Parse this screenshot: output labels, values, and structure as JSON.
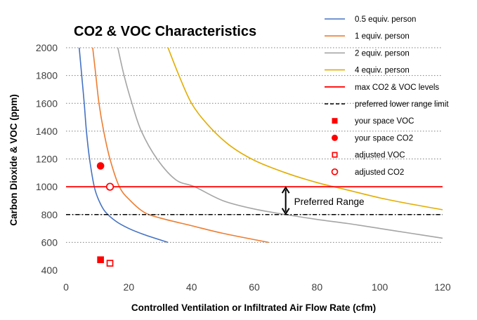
{
  "chart_data": {
    "type": "line",
    "title": "CO2 & VOC Characteristics",
    "xlabel": "Controlled Ventilation or Infiltrated Air Flow Rate (cfm)",
    "ylabel": "Carbon Dioxide & VOC (ppm)",
    "xlim": [
      0,
      120
    ],
    "ylim": [
      400,
      2000
    ],
    "x_ticks": [
      "0",
      "20",
      "40",
      "60",
      "80",
      "100",
      "120"
    ],
    "y_ticks": [
      "400",
      "600",
      "800",
      "1000",
      "1200",
      "1400",
      "1600",
      "1800",
      "2000"
    ],
    "grid": "horizontal dotted",
    "legend_position": "right",
    "series": [
      {
        "name": "0.5 equiv. person",
        "kind": "line",
        "color": "#4472c4",
        "points": [
          [
            4.2,
            2000
          ],
          [
            5,
            1800
          ],
          [
            5.8,
            1600
          ],
          [
            6.5,
            1400
          ],
          [
            7.5,
            1200
          ],
          [
            9,
            1000
          ],
          [
            10.5,
            900
          ],
          [
            12.5,
            820
          ],
          [
            16,
            750
          ],
          [
            20,
            700
          ],
          [
            25,
            655
          ],
          [
            32.5,
            600
          ]
        ]
      },
      {
        "name": "1 equiv.  person",
        "kind": "line",
        "color": "#ed7d31",
        "points": [
          [
            8.5,
            2000
          ],
          [
            9.5,
            1800
          ],
          [
            10.5,
            1600
          ],
          [
            12,
            1400
          ],
          [
            14,
            1200
          ],
          [
            17,
            1000
          ],
          [
            20.5,
            900
          ],
          [
            25,
            815
          ],
          [
            30,
            775
          ],
          [
            40,
            720
          ],
          [
            50,
            665
          ],
          [
            64.5,
            600
          ]
        ]
      },
      {
        "name": "2 equiv. person",
        "kind": "line",
        "color": "#a5a5a5",
        "points": [
          [
            16.5,
            2000
          ],
          [
            18.5,
            1800
          ],
          [
            21,
            1600
          ],
          [
            24,
            1400
          ],
          [
            29,
            1200
          ],
          [
            35,
            1050
          ],
          [
            41,
            1000
          ],
          [
            50,
            900
          ],
          [
            60,
            840
          ],
          [
            70,
            800
          ],
          [
            80,
            765
          ],
          [
            90,
            735
          ],
          [
            100,
            700
          ],
          [
            110,
            665
          ],
          [
            120,
            630
          ]
        ]
      },
      {
        "name": "4 equiv. person",
        "kind": "line",
        "color": "#e2ad00",
        "points": [
          [
            32.5,
            2000
          ],
          [
            36,
            1800
          ],
          [
            40,
            1600
          ],
          [
            45,
            1450
          ],
          [
            52,
            1300
          ],
          [
            60,
            1190
          ],
          [
            70,
            1100
          ],
          [
            80,
            1030
          ],
          [
            90,
            975
          ],
          [
            100,
            920
          ],
          [
            110,
            875
          ],
          [
            120,
            835
          ]
        ]
      },
      {
        "name": "max CO2 & VOC levels",
        "kind": "hline",
        "color": "#ff0000",
        "y": 1000
      },
      {
        "name": "preferred lower range limit",
        "kind": "hline_dashdot",
        "color": "#000000",
        "y": 800
      },
      {
        "name": "your space VOC",
        "kind": "marker",
        "marker": "filled-square",
        "color": "#ff0000",
        "points": [
          [
            11,
            475
          ]
        ]
      },
      {
        "name": "your space CO2",
        "kind": "marker",
        "marker": "filled-circle",
        "color": "#ff0000",
        "points": [
          [
            11,
            1150
          ]
        ]
      },
      {
        "name": "adjusted VOC",
        "kind": "marker",
        "marker": "open-square",
        "color": "#ff0000",
        "points": [
          [
            14,
            450
          ]
        ]
      },
      {
        "name": "adjusted CO2",
        "kind": "marker",
        "marker": "open-circle",
        "color": "#ff0000",
        "points": [
          [
            14,
            1000
          ]
        ]
      }
    ],
    "annotation": {
      "text": "Preferred Range",
      "x": 70,
      "y_from": 800,
      "y_to": 1000
    }
  }
}
